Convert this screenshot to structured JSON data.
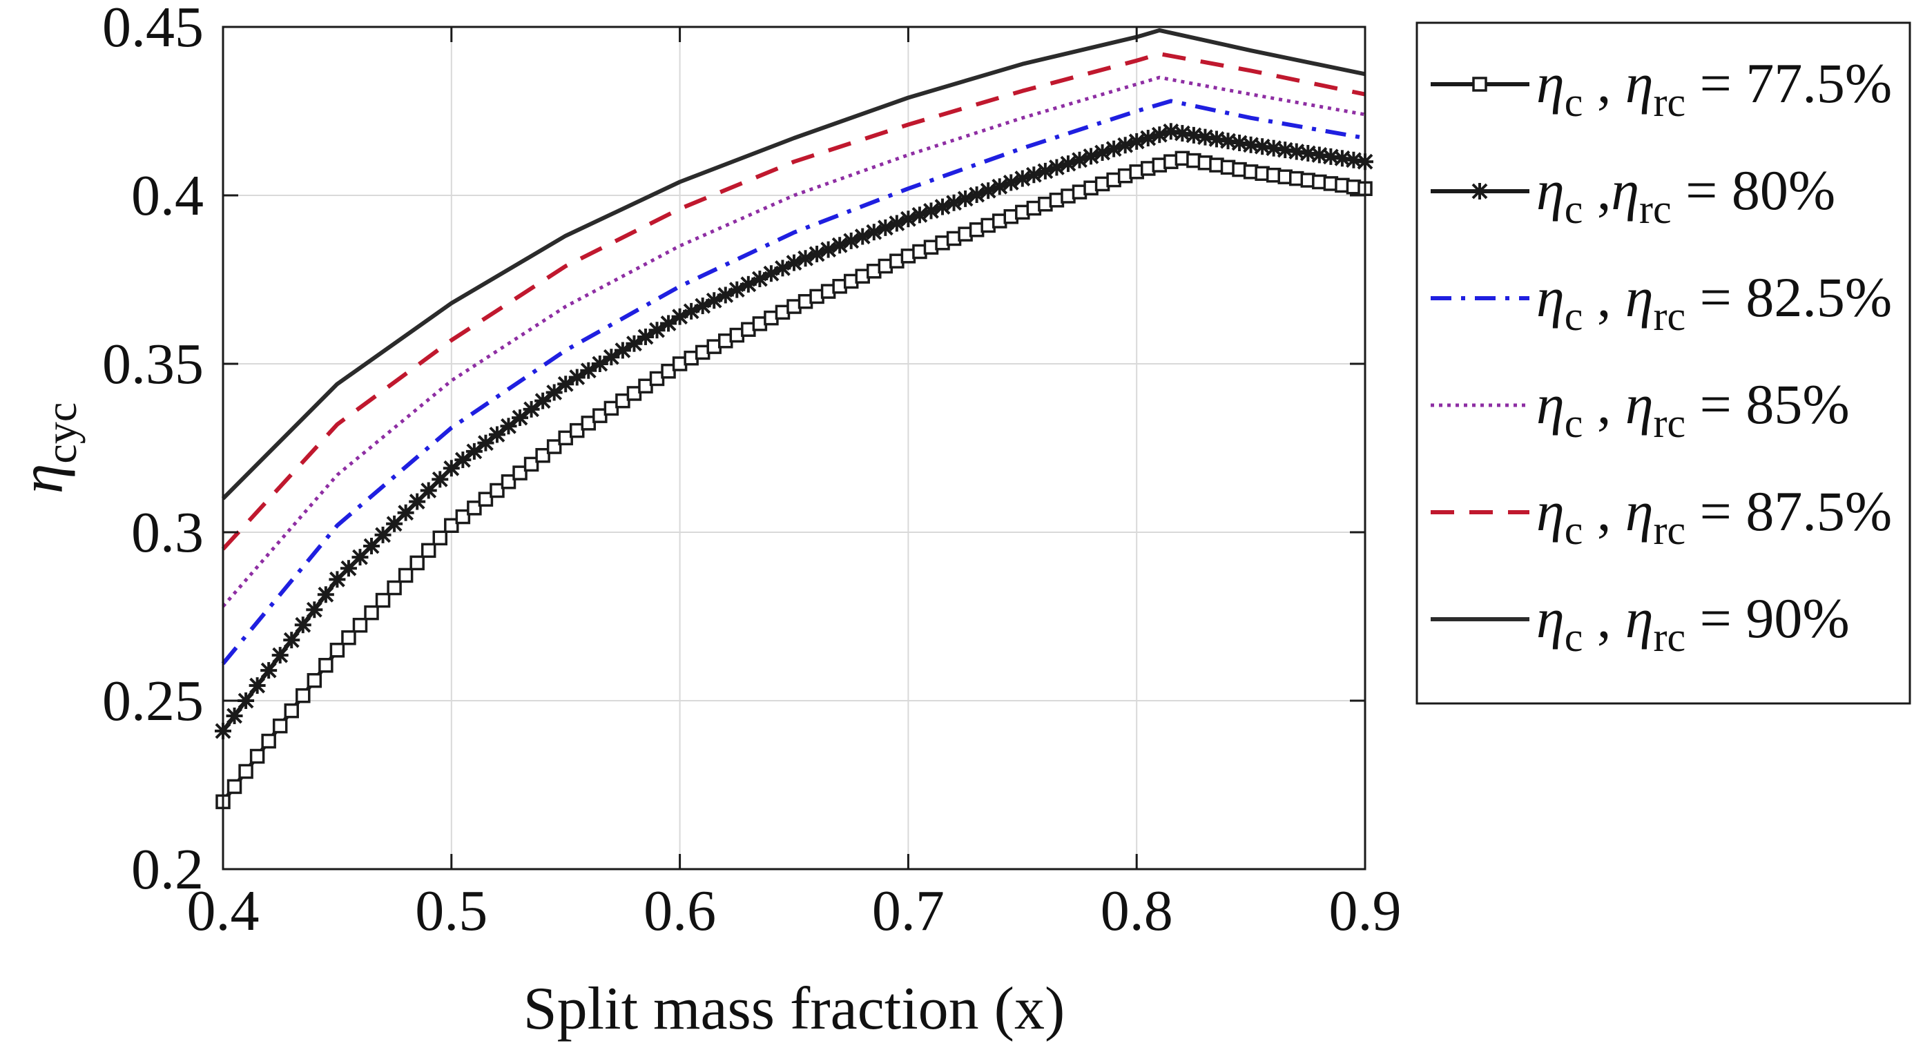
{
  "chart_data": {
    "type": "line",
    "xlabel": "Split mass fraction (x)",
    "ylabel": "η",
    "ylabel_sub": "cyc",
    "xlim": [
      0.4,
      0.9
    ],
    "ylim": [
      0.2,
      0.45
    ],
    "x_ticks": [
      0.4,
      0.5,
      0.6,
      0.7,
      0.8,
      0.9
    ],
    "x_tick_labels": [
      "0.4",
      "0.5",
      "0.6",
      "0.7",
      "0.8",
      "0.9"
    ],
    "y_ticks": [
      0.2,
      0.25,
      0.3,
      0.35,
      0.4,
      0.45
    ],
    "y_tick_labels": [
      "0.2",
      "0.25",
      "0.3",
      "0.35",
      "0.4",
      "0.45"
    ],
    "grid": true,
    "legend_position": "outside-right",
    "series": [
      {
        "legend_prefix": "η",
        "legend_sub_c": "c",
        "legend_sep": " , ",
        "legend_sub_rc": "rc",
        "legend_value": " = 77.5%",
        "color": "#1a1a1a",
        "style": "solid-square",
        "peak_x": 0.82,
        "x": [
          0.4,
          0.45,
          0.5,
          0.55,
          0.6,
          0.65,
          0.7,
          0.75,
          0.8,
          0.82,
          0.85,
          0.9
        ],
        "y": [
          0.22,
          0.265,
          0.302,
          0.328,
          0.35,
          0.367,
          0.382,
          0.395,
          0.407,
          0.411,
          0.407,
          0.402
        ]
      },
      {
        "legend_prefix": "η",
        "legend_sub_c": "c",
        "legend_sep": " ,",
        "legend_sub_rc": "rc",
        "legend_value": " = 80%",
        "color": "#1a1a1a",
        "style": "solid-star",
        "peak_x": 0.815,
        "x": [
          0.4,
          0.45,
          0.5,
          0.55,
          0.6,
          0.65,
          0.7,
          0.75,
          0.8,
          0.815,
          0.85,
          0.9
        ],
        "y": [
          0.241,
          0.286,
          0.319,
          0.344,
          0.364,
          0.38,
          0.393,
          0.405,
          0.416,
          0.419,
          0.415,
          0.41
        ]
      },
      {
        "legend_prefix": "η",
        "legend_sub_c": "c",
        "legend_sep": " , ",
        "legend_sub_rc": "rc",
        "legend_value": " = 82.5%",
        "color": "#1f1fe0",
        "style": "dashdot",
        "peak_x": 0.815,
        "x": [
          0.4,
          0.45,
          0.5,
          0.55,
          0.6,
          0.65,
          0.7,
          0.75,
          0.8,
          0.815,
          0.85,
          0.9
        ],
        "y": [
          0.261,
          0.302,
          0.331,
          0.354,
          0.373,
          0.389,
          0.402,
          0.414,
          0.425,
          0.428,
          0.423,
          0.417
        ]
      },
      {
        "legend_prefix": "η",
        "legend_sub_c": "c",
        "legend_sep": " , ",
        "legend_sub_rc": "rc",
        "legend_value": " = 85%",
        "color": "#8e2ea3",
        "style": "dotted",
        "peak_x": 0.81,
        "x": [
          0.4,
          0.45,
          0.5,
          0.55,
          0.6,
          0.65,
          0.7,
          0.75,
          0.8,
          0.81,
          0.85,
          0.9
        ],
        "y": [
          0.278,
          0.317,
          0.345,
          0.367,
          0.385,
          0.4,
          0.412,
          0.423,
          0.433,
          0.435,
          0.43,
          0.424
        ]
      },
      {
        "legend_prefix": "η",
        "legend_sub_c": "c",
        "legend_sep": " , ",
        "legend_sub_rc": "rc",
        "legend_value": " = 87.5%",
        "color": "#c0182e",
        "style": "dashed",
        "peak_x": 0.81,
        "x": [
          0.4,
          0.45,
          0.5,
          0.55,
          0.6,
          0.65,
          0.7,
          0.75,
          0.8,
          0.81,
          0.85,
          0.9
        ],
        "y": [
          0.295,
          0.332,
          0.357,
          0.379,
          0.396,
          0.41,
          0.421,
          0.431,
          0.44,
          0.442,
          0.437,
          0.43
        ]
      },
      {
        "legend_prefix": "η",
        "legend_sub_c": "c",
        "legend_sep": " , ",
        "legend_sub_rc": "rc",
        "legend_value": " = 90%",
        "color": "#2b2b2b",
        "style": "solid",
        "peak_x": 0.81,
        "x": [
          0.4,
          0.45,
          0.5,
          0.55,
          0.6,
          0.65,
          0.7,
          0.75,
          0.8,
          0.81,
          0.85,
          0.9
        ],
        "y": [
          0.31,
          0.344,
          0.368,
          0.388,
          0.404,
          0.417,
          0.429,
          0.439,
          0.447,
          0.449,
          0.443,
          0.436
        ]
      }
    ]
  }
}
